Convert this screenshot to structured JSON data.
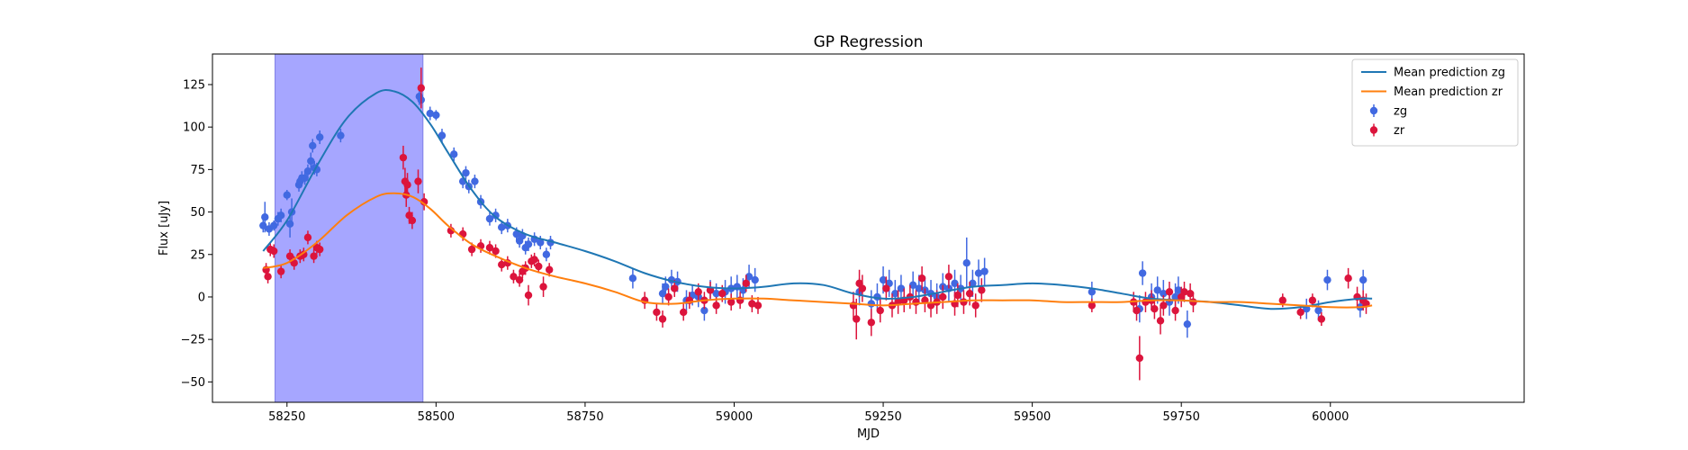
{
  "chart_data": {
    "type": "scatter",
    "title": "GP Regression",
    "xlabel": "MJD",
    "ylabel": "Flux [uJy]",
    "xlim": [
      58125,
      60325
    ],
    "ylim": [
      -62,
      143
    ],
    "xticks": [
      58250,
      58500,
      58750,
      59000,
      59250,
      59500,
      59750,
      60000
    ],
    "yticks": [
      -50,
      -25,
      0,
      25,
      50,
      75,
      100,
      125
    ],
    "grid": false,
    "legend_position": "top-right",
    "shaded_region": {
      "x_start": 58230,
      "x_end": 58478,
      "color": "#a6a6ff"
    },
    "series": [
      {
        "name": "Mean prediction zg",
        "kind": "line",
        "color": "#1f77b4",
        "x": [
          58210,
          58250,
          58300,
          58350,
          58400,
          58430,
          58460,
          58490,
          58520,
          58560,
          58600,
          58650,
          58700,
          58750,
          58800,
          58850,
          58900,
          58950,
          59000,
          59050,
          59100,
          59150,
          59200,
          59250,
          59300,
          59350,
          59400,
          59450,
          59500,
          59550,
          59600,
          59650,
          59700,
          59750,
          59800,
          59850,
          59900,
          59950,
          60000,
          60050,
          60070
        ],
        "y": [
          27,
          45,
          77,
          105,
          120,
          121,
          115,
          102,
          85,
          63,
          47,
          37,
          32,
          27,
          21,
          14,
          9,
          6,
          5,
          6,
          8,
          7,
          2,
          -1,
          0,
          3,
          6,
          7,
          8,
          7,
          5,
          2,
          -1,
          -2,
          -3,
          -5,
          -7,
          -6,
          -3,
          -1,
          -1
        ]
      },
      {
        "name": "Mean prediction zr",
        "kind": "line",
        "color": "#ff7f0e",
        "x": [
          58210,
          58250,
          58300,
          58350,
          58400,
          58430,
          58460,
          58490,
          58520,
          58560,
          58600,
          58650,
          58700,
          58750,
          58800,
          58850,
          58900,
          58950,
          59000,
          59050,
          59100,
          59150,
          59200,
          59250,
          59300,
          59350,
          59400,
          59450,
          59500,
          59550,
          59600,
          59650,
          59700,
          59750,
          59800,
          59850,
          59900,
          59950,
          60000,
          60050,
          60070
        ],
        "y": [
          17,
          20,
          32,
          48,
          59,
          61,
          59,
          52,
          42,
          31,
          24,
          17,
          12,
          8,
          3,
          -3,
          -4,
          -2,
          -1,
          -1,
          -2,
          -3,
          -4,
          -5,
          -4,
          -3,
          -2,
          -2,
          -2,
          -3,
          -3,
          -3,
          -2,
          -2,
          -3,
          -3,
          -4,
          -5,
          -6,
          -6,
          -5
        ]
      },
      {
        "name": "zg",
        "kind": "errorbar",
        "color": "#4169e1",
        "x": [
          58210,
          58213,
          58220,
          58228,
          58235,
          58240,
          58250,
          58255,
          58258,
          58270,
          58272,
          58275,
          58280,
          58285,
          58290,
          58293,
          58296,
          58300,
          58305,
          58340,
          58472,
          58475,
          58490,
          58500,
          58510,
          58530,
          58545,
          58550,
          58555,
          58565,
          58575,
          58590,
          58600,
          58610,
          58620,
          58635,
          58640,
          58645,
          58650,
          58655,
          58665,
          58675,
          58685,
          58692,
          58830,
          58880,
          58885,
          58895,
          58905,
          58920,
          58930,
          58940,
          58950,
          58960,
          58970,
          58985,
          58995,
          59005,
          59015,
          59025,
          59035,
          59210,
          59230,
          59240,
          59250,
          59260,
          59270,
          59280,
          59300,
          59310,
          59320,
          59330,
          59340,
          59350,
          59360,
          59370,
          59380,
          59390,
          59400,
          59410,
          59420,
          59600,
          59680,
          59685,
          59700,
          59710,
          59720,
          59730,
          59740,
          59745,
          59760,
          59960,
          59980,
          59995,
          60050,
          60055
        ],
        "y": [
          42,
          47,
          40,
          42,
          46,
          48,
          60,
          43,
          50,
          66,
          68,
          70,
          70,
          74,
          80,
          89,
          76,
          75,
          94,
          95,
          118,
          116,
          108,
          107,
          95,
          84,
          68,
          73,
          65,
          68,
          56,
          46,
          48,
          41,
          42,
          37,
          33,
          36,
          29,
          31,
          34,
          32,
          25,
          32,
          11,
          2,
          6,
          10,
          9,
          -2,
          1,
          0,
          -8,
          4,
          2,
          3,
          5,
          6,
          4,
          12,
          10,
          3,
          -4,
          0,
          10,
          8,
          2,
          5,
          7,
          5,
          4,
          2,
          0,
          6,
          5,
          8,
          5,
          20,
          8,
          14,
          15,
          3,
          -7,
          14,
          0,
          4,
          2,
          -3,
          0,
          4,
          -16,
          -7,
          -8,
          10,
          -6,
          10
        ],
        "yerr": [
          4,
          9,
          4,
          3,
          4,
          4,
          3,
          8,
          8,
          4,
          4,
          4,
          4,
          4,
          5,
          4,
          4,
          4,
          4,
          4,
          5,
          4,
          4,
          3,
          4,
          4,
          4,
          4,
          4,
          4,
          4,
          4,
          4,
          4,
          4,
          4,
          4,
          4,
          4,
          4,
          4,
          4,
          4,
          4,
          6,
          6,
          6,
          6,
          6,
          6,
          6,
          6,
          6,
          6,
          6,
          7,
          7,
          7,
          7,
          7,
          7,
          8,
          8,
          8,
          8,
          8,
          8,
          8,
          8,
          8,
          8,
          8,
          8,
          8,
          8,
          8,
          8,
          15,
          8,
          8,
          8,
          6,
          8,
          7,
          8,
          8,
          8,
          8,
          8,
          8,
          8,
          6,
          6,
          6,
          6,
          6
        ]
      },
      {
        "name": "zr",
        "kind": "errorbar",
        "color": "#dc143c",
        "x": [
          58215,
          58218,
          58222,
          58228,
          58240,
          58255,
          58262,
          58272,
          58278,
          58285,
          58295,
          58300,
          58305,
          58445,
          58448,
          58450,
          58452,
          58455,
          58460,
          58470,
          58475,
          58480,
          58525,
          58545,
          58560,
          58575,
          58590,
          58600,
          58610,
          58620,
          58630,
          58640,
          58645,
          58650,
          58655,
          58660,
          58665,
          58672,
          58680,
          58690,
          58850,
          58870,
          58880,
          58890,
          58900,
          58915,
          58925,
          58940,
          58950,
          58960,
          58970,
          58980,
          58995,
          59010,
          59020,
          59030,
          59040,
          59200,
          59205,
          59210,
          59215,
          59230,
          59245,
          59255,
          59265,
          59275,
          59285,
          59295,
          59305,
          59315,
          59320,
          59330,
          59340,
          59350,
          59360,
          59370,
          59375,
          59385,
          59395,
          59405,
          59415,
          59600,
          59670,
          59675,
          59680,
          59690,
          59700,
          59705,
          59715,
          59720,
          59730,
          59740,
          59750,
          59755,
          59765,
          59770,
          59920,
          59950,
          59970,
          59985,
          60030,
          60045,
          60055,
          60060
        ],
        "y": [
          16,
          12,
          28,
          27,
          15,
          24,
          20,
          24,
          25,
          35,
          24,
          29,
          28,
          82,
          68,
          60,
          66,
          48,
          45,
          68,
          123,
          56,
          39,
          37,
          28,
          30,
          29,
          27,
          19,
          20,
          12,
          10,
          15,
          17,
          1,
          21,
          22,
          18,
          6,
          16,
          -2,
          -9,
          -13,
          0,
          5,
          -9,
          -2,
          3,
          -2,
          4,
          -5,
          2,
          -3,
          -2,
          8,
          -4,
          -5,
          -5,
          -13,
          8,
          5,
          -15,
          -8,
          5,
          -5,
          -3,
          -2,
          0,
          -3,
          11,
          -2,
          -5,
          -3,
          0,
          12,
          -4,
          1,
          -3,
          2,
          -5,
          4,
          -5,
          -3,
          -8,
          -36,
          -3,
          -2,
          -7,
          -14,
          -5,
          3,
          -8,
          0,
          3,
          2,
          -3,
          -2,
          -9,
          -2,
          -13,
          11,
          0,
          -2,
          -4
        ],
        "yerr": [
          4,
          4,
          4,
          4,
          4,
          4,
          4,
          4,
          4,
          4,
          4,
          4,
          4,
          7,
          8,
          7,
          7,
          5,
          5,
          7,
          12,
          5,
          4,
          4,
          4,
          4,
          4,
          4,
          4,
          4,
          4,
          4,
          4,
          4,
          6,
          4,
          4,
          4,
          6,
          4,
          5,
          5,
          5,
          5,
          5,
          5,
          5,
          5,
          5,
          5,
          5,
          5,
          5,
          5,
          5,
          5,
          5,
          8,
          12,
          8,
          8,
          8,
          7,
          7,
          7,
          7,
          7,
          7,
          7,
          7,
          7,
          7,
          7,
          7,
          7,
          7,
          7,
          7,
          7,
          7,
          7,
          4,
          6,
          6,
          13,
          6,
          6,
          6,
          8,
          6,
          6,
          6,
          6,
          6,
          6,
          6,
          4,
          4,
          4,
          4,
          6,
          6,
          6,
          6
        ]
      }
    ]
  }
}
